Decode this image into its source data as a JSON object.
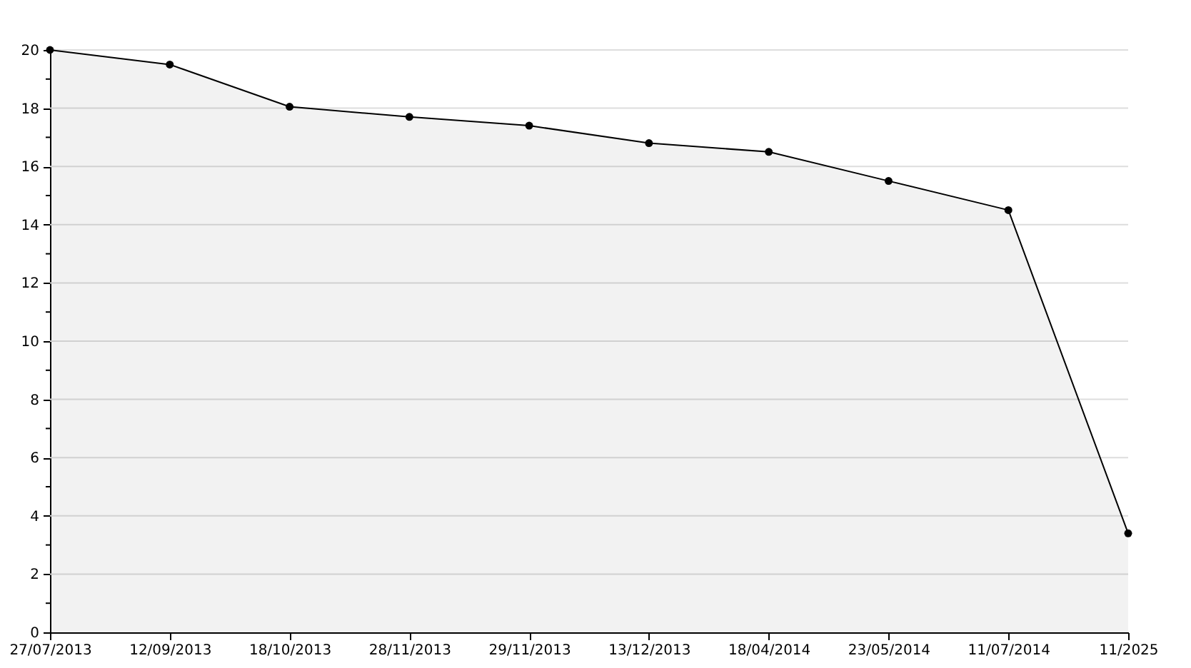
{
  "chart_data": {
    "type": "area",
    "categories": [
      "27/07/2013",
      "12/09/2013",
      "18/10/2013",
      "28/11/2013",
      "29/11/2013",
      "13/12/2013",
      "18/04/2014",
      "23/05/2014",
      "11/07/2014",
      "11/2025"
    ],
    "series": [
      {
        "color": "#000000",
        "values": [
          20,
          19.5,
          18.05,
          17.7,
          17.4,
          16.8,
          16.5,
          15.5,
          14.5,
          3.4
        ]
      }
    ],
    "ylim": [
      0,
      20
    ],
    "yticks": [
      0,
      {
        "value": 1,
        "label": null
      },
      2,
      {
        "value": 3,
        "label": null
      },
      4,
      {
        "value": 5,
        "label": null
      },
      6,
      {
        "value": 7,
        "label": null
      },
      8,
      {
        "value": 9,
        "label": null
      },
      10,
      {
        "value": 11,
        "label": null
      },
      12,
      {
        "value": 13,
        "label": null
      },
      14,
      {
        "value": 15,
        "label": null
      },
      16,
      {
        "value": 17,
        "label": null
      },
      18,
      {
        "value": 19,
        "label": null
      },
      20
    ],
    "grid": "y",
    "marker": "circle"
  }
}
